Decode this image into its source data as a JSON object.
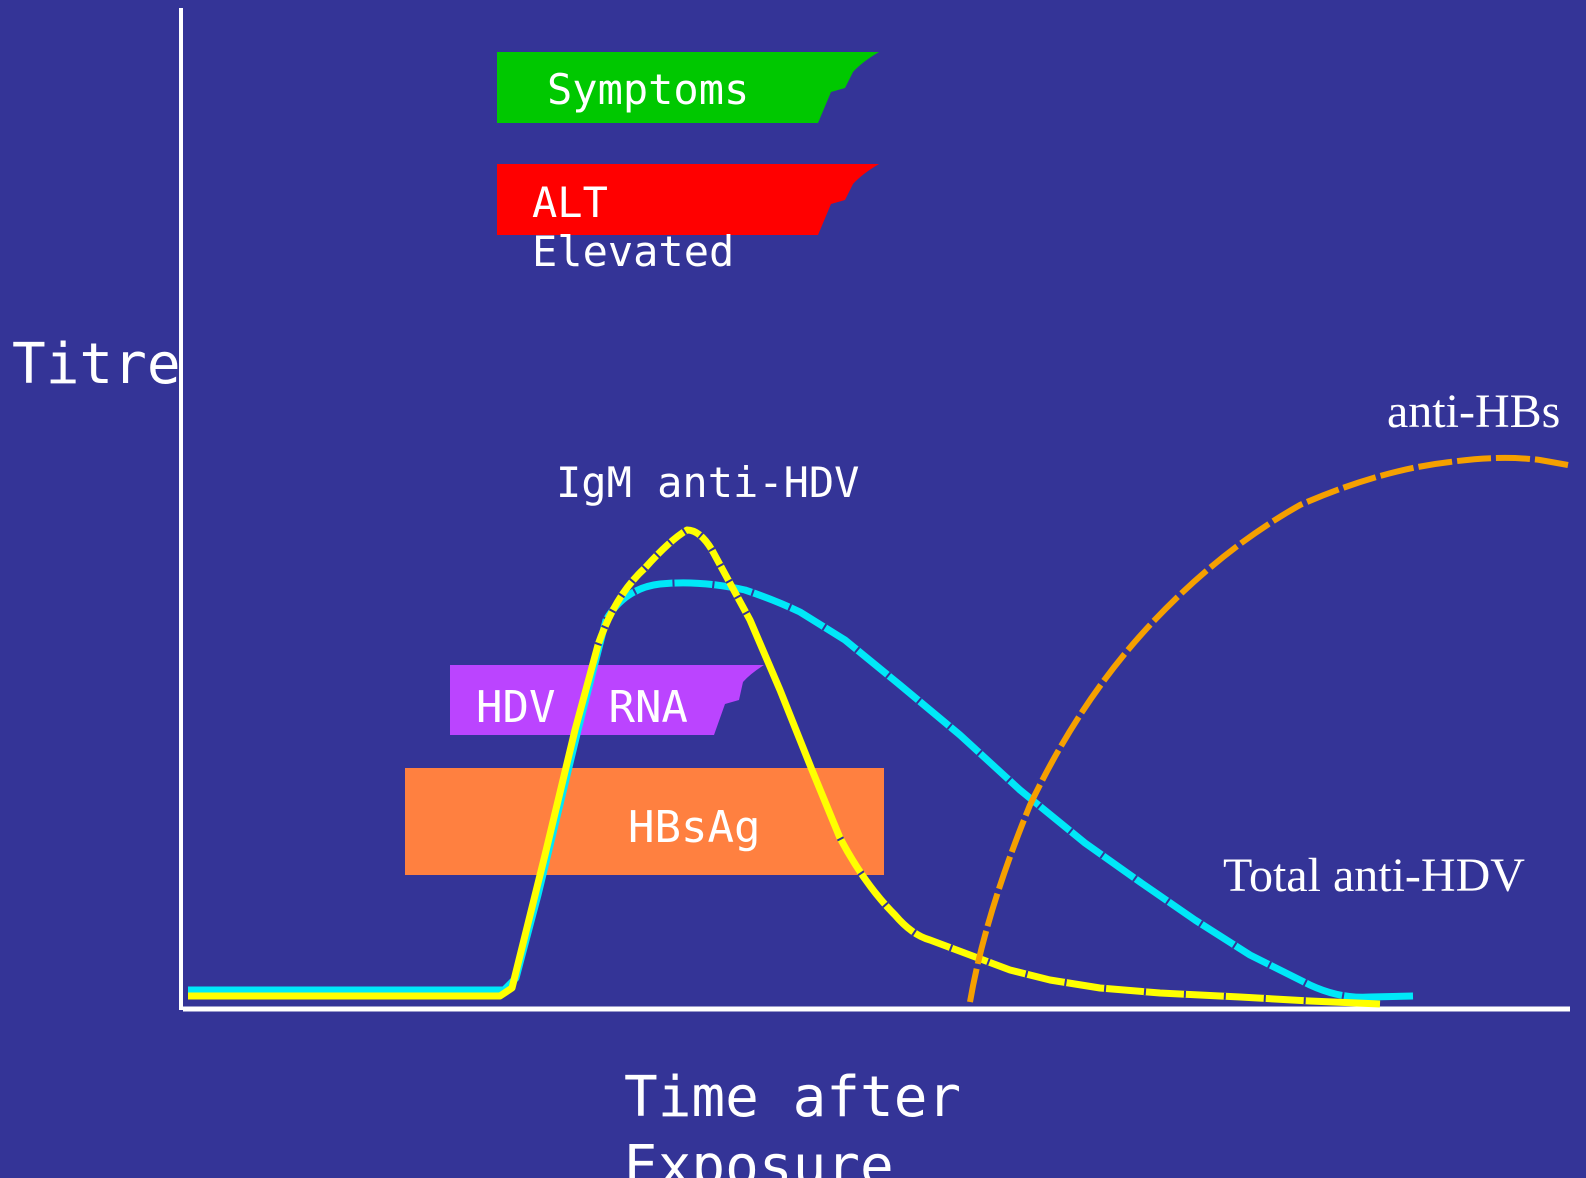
{
  "colors": {
    "background": "#343497",
    "axis": "#ffffff",
    "symptoms_bar": "#00c800",
    "alt_bar": "#ff0000",
    "hdv_rna_bar": "#bb44ff",
    "hbsag_bar": "#ff8040",
    "total_anti_hdv_curve": "#00e8f8",
    "igm_anti_hdv_curve": "#ffff00",
    "anti_hbs_curve": "#f5a000",
    "text": "#ffffff"
  },
  "axes": {
    "y_label": "Titre",
    "x_label_line1": "Time after",
    "x_label_line2": "Exposure"
  },
  "bars": {
    "symptoms": "Symptoms",
    "alt_line1": "ALT",
    "alt_line2": "Elevated",
    "hdv_rna": "HDV  RNA",
    "hbsag": "HBsAg"
  },
  "curve_labels": {
    "igm_anti_hdv": "IgM anti-HDV",
    "anti_hbs": "anti-HBs",
    "total_anti_hdv": "Total anti-HDV"
  }
}
